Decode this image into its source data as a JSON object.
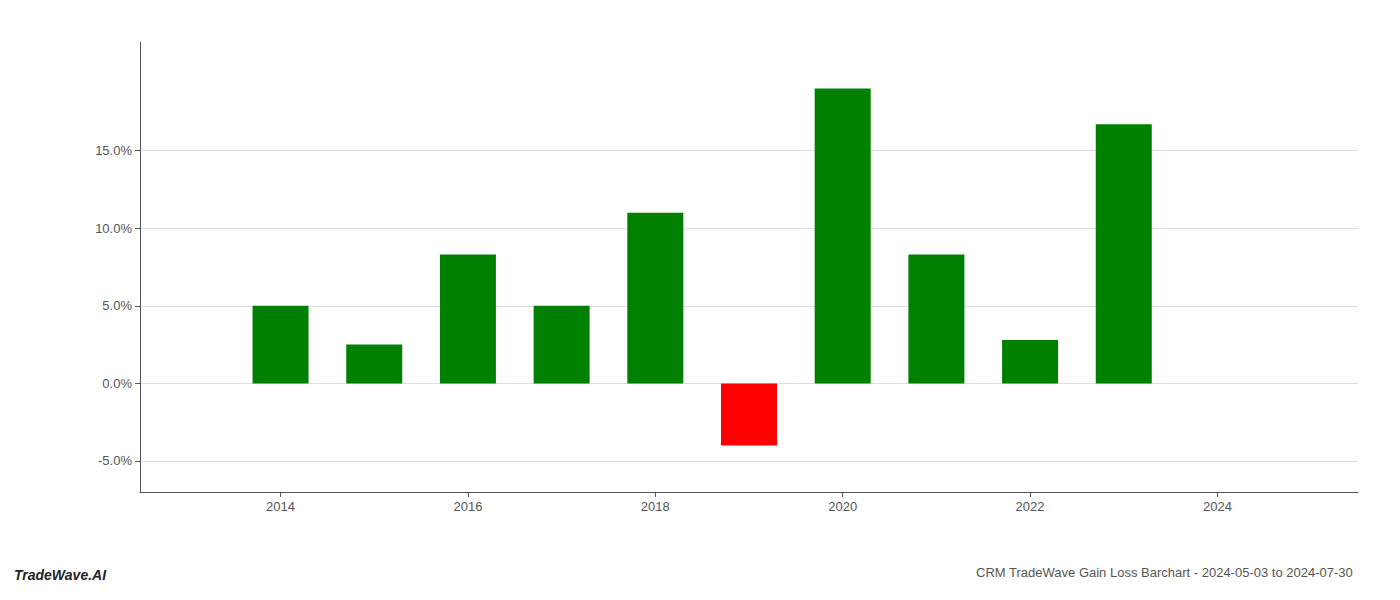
{
  "chart_data": {
    "type": "bar",
    "title": "CRM TradeWave Gain Loss Barchart - 2024-05-03 to 2024-07-30",
    "annotations": [
      "TradeWave.AI"
    ],
    "x": [
      2014,
      2015,
      2016,
      2017,
      2018,
      2019,
      2020,
      2021,
      2022,
      2023
    ],
    "values": [
      0.05,
      0.025,
      0.083,
      0.05,
      0.11,
      -0.04,
      0.19,
      0.083,
      0.028,
      0.167
    ],
    "colors": [
      "#008000",
      "#008000",
      "#008000",
      "#008000",
      "#008000",
      "#ff0000",
      "#008000",
      "#008000",
      "#008000",
      "#008000"
    ],
    "xlim": [
      2012.5,
      2025.5
    ],
    "xticks": [
      2014,
      2016,
      2018,
      2020,
      2022,
      2024
    ],
    "ylim": [
      -0.07,
      0.22
    ],
    "yticks": [
      {
        "value": -0.05,
        "label": "-5.0%"
      },
      {
        "value": 0.0,
        "label": "0.0%"
      },
      {
        "value": 0.05,
        "label": "5.0%"
      },
      {
        "value": 0.1,
        "label": "10.0%"
      },
      {
        "value": 0.15,
        "label": "15.0%"
      }
    ],
    "grid": true
  }
}
